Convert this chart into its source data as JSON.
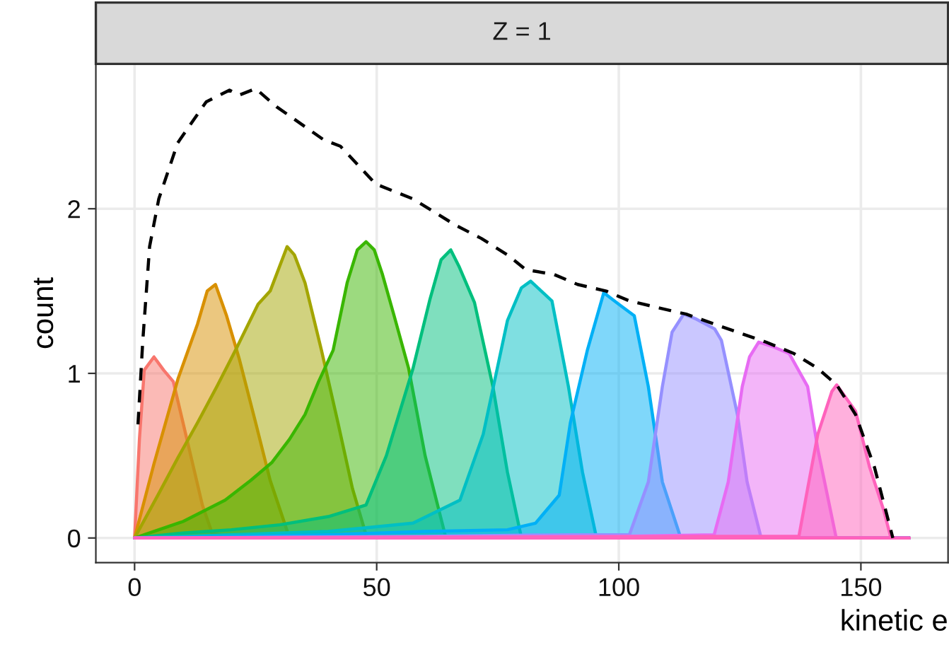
{
  "chart_data": {
    "type": "area",
    "title": "Z = 1",
    "xlabel": "kinetic e",
    "ylabel": "count",
    "xlim": [
      -8,
      168
    ],
    "ylim": [
      -0.15,
      2.88
    ],
    "xticks": [
      0,
      50,
      100,
      150
    ],
    "yticks": [
      0,
      1,
      2
    ],
    "grid": true,
    "legend": false,
    "series": [
      {
        "color": "#F8766D",
        "x": [
          0,
          1,
          2,
          4,
          6,
          8,
          10,
          12,
          14,
          16,
          20,
          160
        ],
        "values": [
          0,
          0.6,
          1.02,
          1.1,
          1.02,
          0.95,
          0.7,
          0.45,
          0.2,
          0.03,
          0,
          0
        ]
      },
      {
        "color": "#D89000",
        "x": [
          0,
          4,
          9,
          13,
          15,
          16.7,
          19,
          21.6,
          25,
          28,
          32,
          160
        ],
        "values": [
          0,
          0.45,
          0.97,
          1.3,
          1.5,
          1.54,
          1.35,
          1.09,
          0.7,
          0.35,
          0,
          0
        ]
      },
      {
        "color": "#A3A500",
        "x": [
          0,
          5,
          9,
          13,
          17,
          21,
          25.5,
          28,
          31.5,
          33,
          35.2,
          38.6,
          42,
          45,
          48,
          160
        ],
        "values": [
          0,
          0.27,
          0.49,
          0.7,
          0.92,
          1.15,
          1.42,
          1.5,
          1.77,
          1.72,
          1.55,
          1.14,
          0.7,
          0.3,
          0,
          0
        ]
      },
      {
        "color": "#39B600",
        "x": [
          0,
          5,
          10,
          18.7,
          24,
          28.4,
          32,
          35.2,
          38,
          41,
          43.9,
          46,
          47.8,
          49.5,
          51.2,
          53.6,
          56.6,
          60,
          64.3,
          160
        ],
        "values": [
          0,
          0.05,
          0.1,
          0.23,
          0.35,
          0.46,
          0.6,
          0.75,
          0.95,
          1.14,
          1.55,
          1.75,
          1.8,
          1.75,
          1.6,
          1.35,
          1.03,
          0.5,
          0,
          0
        ]
      },
      {
        "color": "#00BF7D",
        "x": [
          0,
          10,
          20,
          30,
          40,
          47.8,
          52,
          57.5,
          61,
          63.3,
          65.3,
          67,
          70.2,
          74,
          77,
          79.9,
          160
        ],
        "values": [
          0,
          0.03,
          0.05,
          0.08,
          0.13,
          0.2,
          0.5,
          1.03,
          1.45,
          1.69,
          1.75,
          1.65,
          1.43,
          0.92,
          0.4,
          0,
          0
        ]
      },
      {
        "color": "#00BFC4",
        "x": [
          0,
          20,
          40,
          57.5,
          67.2,
          72,
          77,
          79.9,
          81.8,
          84,
          86.2,
          89.6,
          92.5,
          95.4,
          160
        ],
        "values": [
          0,
          0.02,
          0.04,
          0.09,
          0.23,
          0.63,
          1.32,
          1.52,
          1.56,
          1.5,
          1.44,
          0.92,
          0.4,
          0,
          0
        ]
      },
      {
        "color": "#00B0F6",
        "x": [
          0,
          40,
          60,
          77,
          82.8,
          87.7,
          90,
          93.5,
          96.9,
          100,
          103.2,
          106.1,
          109,
          112.8,
          160
        ],
        "values": [
          0,
          0.02,
          0.04,
          0.05,
          0.09,
          0.26,
          0.7,
          1.14,
          1.49,
          1.42,
          1.35,
          0.92,
          0.34,
          0,
          0
        ]
      },
      {
        "color": "#9590FF",
        "x": [
          0,
          60,
          90,
          102.2,
          106.1,
          109,
          111,
          113.4,
          116,
          119.8,
          121.2,
          124.5,
          126.5,
          129.4,
          160
        ],
        "values": [
          0,
          0.01,
          0.02,
          0.02,
          0.34,
          0.92,
          1.25,
          1.36,
          1.33,
          1.27,
          1.2,
          0.75,
          0.34,
          0,
          0
        ]
      },
      {
        "color": "#E76BF3",
        "x": [
          0,
          100,
          119.7,
          122.6,
          125.5,
          127,
          128.9,
          132,
          135.2,
          139,
          141.1,
          144.9,
          160
        ],
        "values": [
          0,
          0.01,
          0.02,
          0.34,
          0.92,
          1.1,
          1.19,
          1.16,
          1.12,
          0.92,
          0.54,
          0,
          0
        ]
      },
      {
        "color": "#FF62BC",
        "x": [
          0,
          120,
          137.2,
          139,
          141.1,
          144,
          145,
          148.9,
          151.8,
          154.7,
          156.2,
          160
        ],
        "values": [
          0,
          0.01,
          0.01,
          0.3,
          0.63,
          0.89,
          0.93,
          0.77,
          0.43,
          0.17,
          0,
          0
        ]
      },
      {
        "type": "line",
        "line_style": "dashed",
        "color": "#000000",
        "x": [
          0.7,
          1.7,
          3.1,
          5,
          8.9,
          14.8,
          19.6,
          21.6,
          25,
          29.3,
          39,
          42.5,
          49.8,
          57.5,
          66.3,
          71.6,
          77,
          80.8,
          86.7,
          91.5,
          97.4,
          102.2,
          108,
          113.9,
          119.7,
          125.5,
          130.4,
          136.2,
          141.1,
          145,
          148.9,
          152.8,
          156.6
        ],
        "values": [
          0.69,
          1.2,
          1.77,
          2.06,
          2.4,
          2.65,
          2.72,
          2.69,
          2.73,
          2.62,
          2.42,
          2.38,
          2.15,
          2.06,
          1.9,
          1.82,
          1.72,
          1.63,
          1.6,
          1.54,
          1.5,
          1.44,
          1.4,
          1.36,
          1.3,
          1.24,
          1.19,
          1.12,
          1.03,
          0.93,
          0.75,
          0.43,
          0
        ]
      }
    ]
  }
}
